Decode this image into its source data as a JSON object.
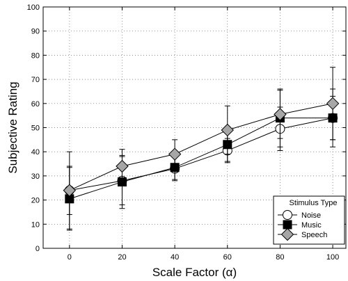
{
  "chart_data": {
    "type": "line",
    "xlabel": "Scale Factor (α)",
    "ylabel": "Subjective Rating",
    "xlim": [
      -10,
      105
    ],
    "ylim": [
      0,
      100
    ],
    "xticks": [
      0,
      20,
      40,
      60,
      80,
      100
    ],
    "yticks": [
      0,
      10,
      20,
      30,
      40,
      50,
      60,
      70,
      80,
      90,
      100
    ],
    "grid": true,
    "grid_style": "dotted",
    "legend": {
      "title": "Stimulus Type",
      "position": "bottom-right"
    },
    "x": [
      0,
      20,
      40,
      60,
      80,
      100
    ],
    "series": [
      {
        "name": "Noise",
        "marker": "circle",
        "color": "#000000",
        "fill": "#ffffff",
        "values": [
          24,
          28,
          33,
          40.5,
          49.5,
          54
        ],
        "error": [
          10,
          10,
          5,
          5,
          9,
          9
        ]
      },
      {
        "name": "Music",
        "marker": "square",
        "color": "#000000",
        "fill": "#000000",
        "values": [
          20.5,
          27.5,
          33.5,
          43,
          54,
          54
        ],
        "error": [
          13,
          11,
          5,
          7,
          12,
          12
        ]
      },
      {
        "name": "Speech",
        "marker": "diamond",
        "color": "#000000",
        "fill": "#a6a6a6",
        "values": [
          24,
          34,
          39,
          49,
          55.5,
          60
        ],
        "error": [
          16,
          7,
          6,
          10,
          10,
          15
        ]
      }
    ]
  }
}
